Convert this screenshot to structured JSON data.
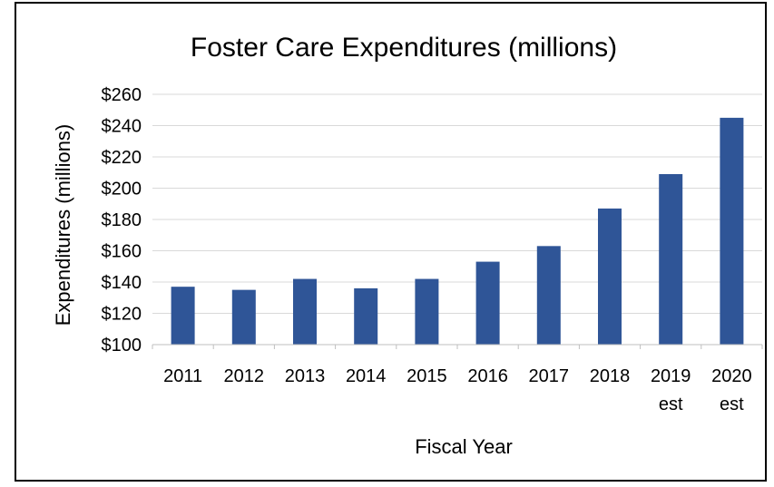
{
  "chart_data": {
    "type": "bar",
    "title": "Foster Care Expenditures (millions)",
    "xlabel": "Fiscal Year",
    "ylabel": "Expenditures (millions)",
    "categories": [
      [
        "2011"
      ],
      [
        "2012"
      ],
      [
        "2013"
      ],
      [
        "2014"
      ],
      [
        "2015"
      ],
      [
        "2016"
      ],
      [
        "2017"
      ],
      [
        "2018"
      ],
      [
        "2019",
        "est"
      ],
      [
        "2020",
        "est"
      ]
    ],
    "values": [
      137,
      135,
      142,
      136,
      142,
      153,
      163,
      187,
      209,
      245
    ],
    "ylim": [
      100,
      260
    ],
    "yticks": [
      100,
      120,
      140,
      160,
      180,
      200,
      220,
      240,
      260
    ],
    "ytick_labels": [
      "$100",
      "$120",
      "$140",
      "$160",
      "$180",
      "$200",
      "$220",
      "$240",
      "$260"
    ],
    "bar_color": "#2F5597",
    "grid": true,
    "legend": "none"
  }
}
